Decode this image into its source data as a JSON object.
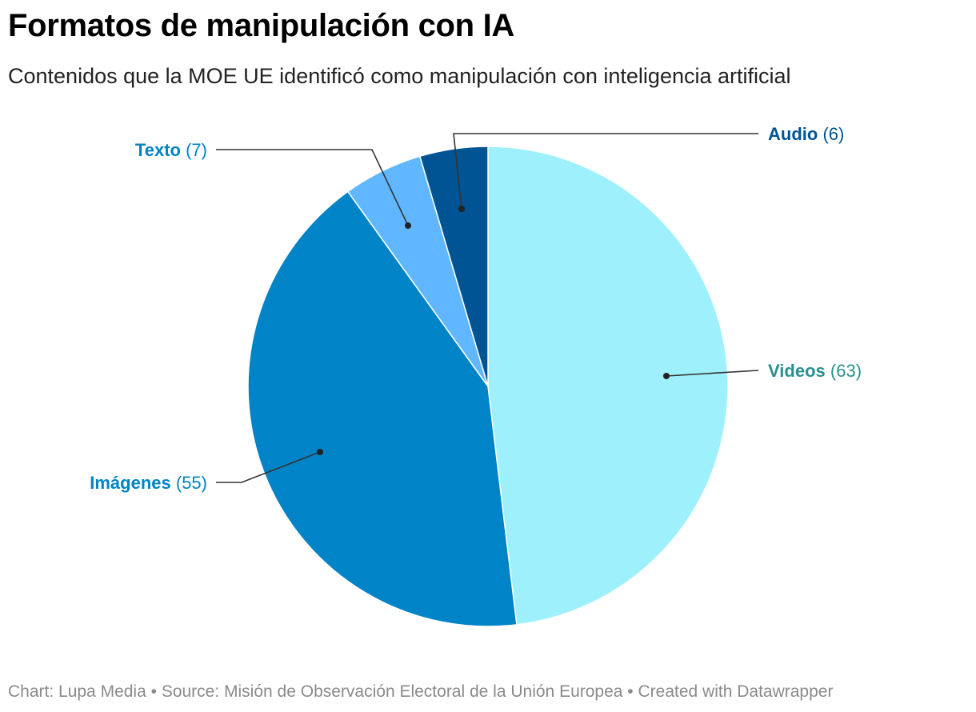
{
  "title": "Formatos de manipulación con IA",
  "subtitle": "Contenidos que la MOE UE identificó como manipulación con inteligencia artificial",
  "footer": {
    "chart": "Chart: Lupa Media",
    "separator": " • ",
    "source": "Source: Misión de Observación Electoral de la Unión Europea",
    "created": "Created with Datawrapper"
  },
  "chart_data": {
    "type": "pie",
    "title": "Formatos de manipulación con IA",
    "start": "12 o'clock",
    "direction": "clockwise",
    "slices": [
      {
        "label": "Videos",
        "value": 63,
        "color": "#9ef0fc",
        "label_color": "#2a8f8f",
        "label_side": "right"
      },
      {
        "label": "Imágenes",
        "value": 55,
        "color": "#0083c7",
        "label_color": "#0083c7",
        "label_side": "left"
      },
      {
        "label": "Texto",
        "value": 7,
        "color": "#60b7ff",
        "label_color": "#0083c7",
        "label_side": "left"
      },
      {
        "label": "Audio",
        "value": 6,
        "color": "#005493",
        "label_color": "#005493",
        "label_side": "right"
      }
    ]
  }
}
